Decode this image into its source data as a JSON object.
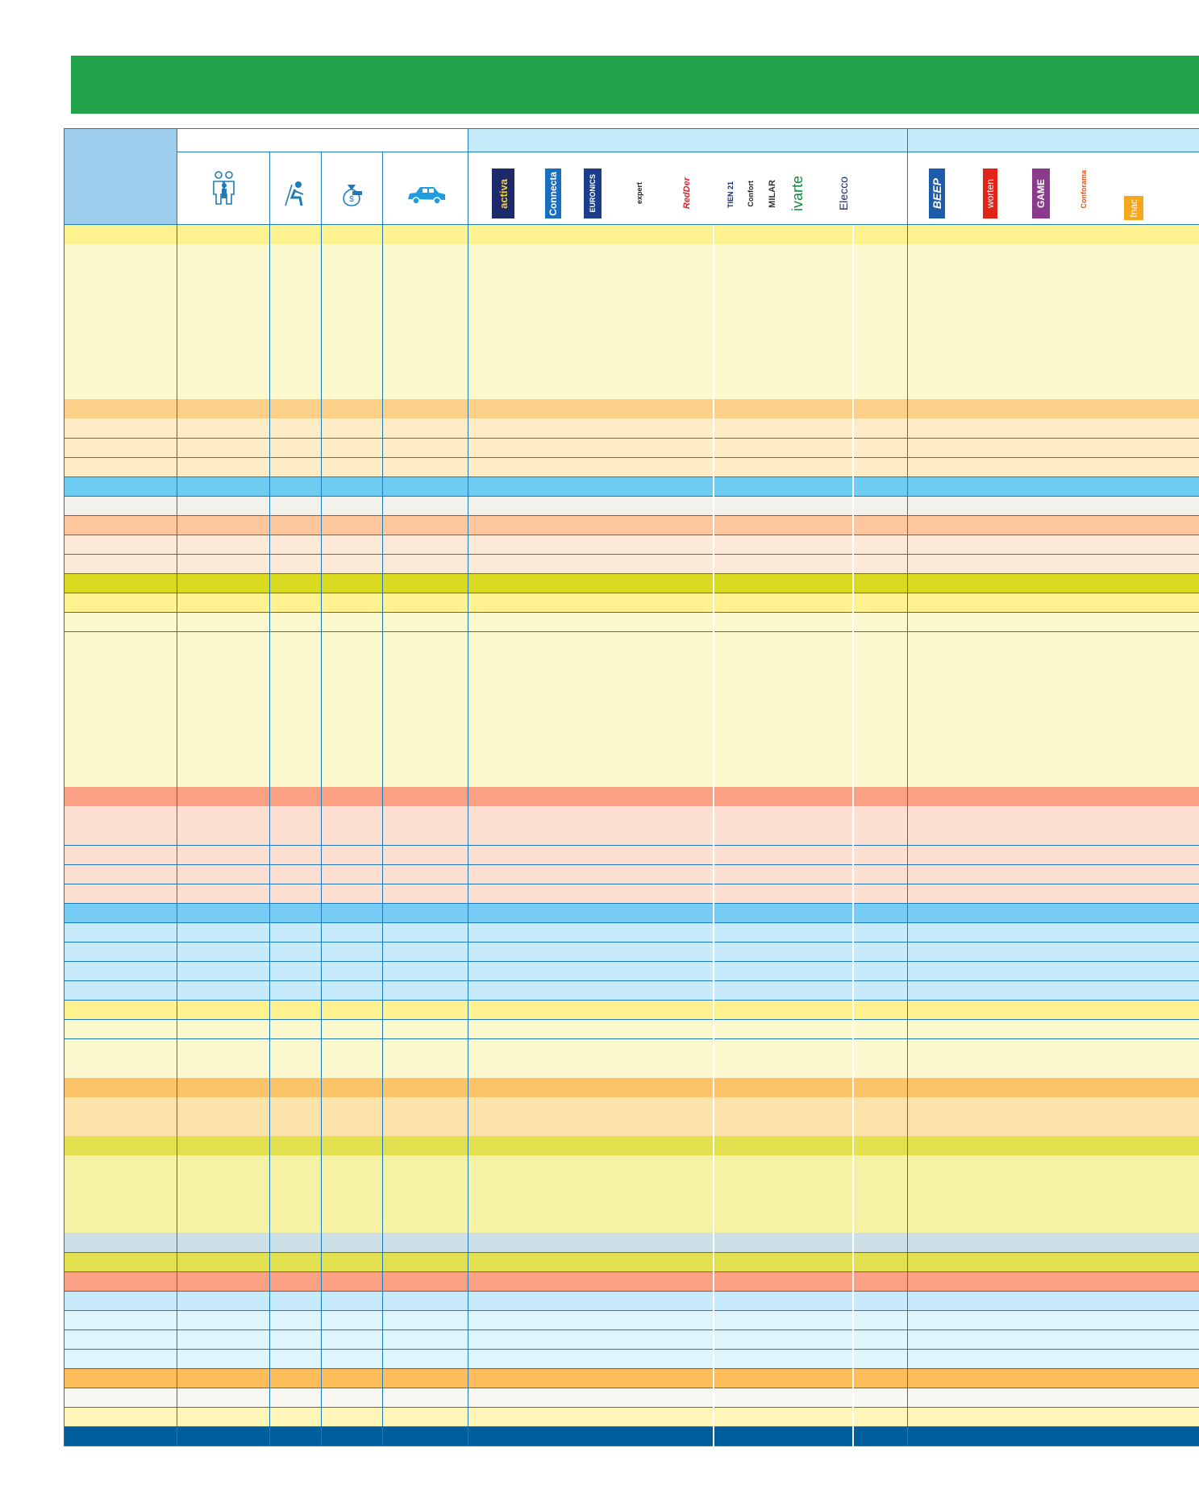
{
  "header": {
    "title": ""
  },
  "logos": {
    "activa": "activa",
    "connecta": "Connecta",
    "euronics": "EURONICS",
    "expert": "expert",
    "redder": "RedDer",
    "tien21": "TIEN 21",
    "confort": "Confort",
    "milar": "MILAR",
    "ivarte": "ivarte",
    "elecco": "Elecco",
    "beep": "BEEP",
    "worten": "worten",
    "game": "GAME",
    "conforama": "Conforama",
    "fnac": "fnac"
  },
  "icons": {
    "col1": "family-icon",
    "col2": "person-sitting-icon",
    "col3": "money-bag-icon",
    "col4": "car-icon"
  },
  "colors": {
    "green": "#22a34a",
    "border": "#1e7bb8",
    "header_left": "#9ccdec",
    "header_band": "#c6ebfa",
    "footer": "#005e9c"
  },
  "rows": [
    {
      "color": "#fdf28f"
    },
    {
      "color": "#fdf9cf"
    },
    {
      "color": "#fdf9cf"
    },
    {
      "color": "#fdf9cf"
    },
    {
      "color": "#fdf9cf"
    },
    {
      "color": "#fdf9cf"
    },
    {
      "color": "#fdf9cf"
    },
    {
      "color": "#fdf9cf"
    },
    {
      "color": "#fdf9cf"
    },
    {
      "color": "#fdd08a"
    },
    {
      "color": "#fdecc5"
    },
    {
      "color": "#fdecc5"
    },
    {
      "color": "#fdecc5"
    },
    {
      "color": "#6ecbf2"
    },
    {
      "color": "#f3f1ec"
    },
    {
      "color": "#fdc69d"
    },
    {
      "color": "#fde9d8"
    },
    {
      "color": "#fde9d8"
    },
    {
      "color": "#dada20"
    },
    {
      "color": "#fdf28f"
    },
    {
      "color": "#fdf9cf"
    },
    {
      "color": "#fdf9cf"
    },
    {
      "color": "#fdf9cf"
    },
    {
      "color": "#fdf9cf"
    },
    {
      "color": "#fdf9cf"
    },
    {
      "color": "#fdf9cf"
    },
    {
      "color": "#fdf9cf"
    },
    {
      "color": "#fdf9cf"
    },
    {
      "color": "#fdf9cf"
    },
    {
      "color": "#f9a085"
    },
    {
      "color": "#fde0d2"
    },
    {
      "color": "#fde0d2"
    },
    {
      "color": "#fde0d2"
    },
    {
      "color": "#fde0d2"
    },
    {
      "color": "#fde0d2"
    },
    {
      "color": "#76ccf2"
    },
    {
      "color": "#c7ebfa"
    },
    {
      "color": "#c7ebfa"
    },
    {
      "color": "#c7ebfa"
    },
    {
      "color": "#c7ebfa"
    },
    {
      "color": "#fdf28f"
    },
    {
      "color": "#fdf9cf"
    },
    {
      "color": "#fdf9cf"
    },
    {
      "color": "#fdf9cf"
    },
    {
      "color": "#fcc369"
    },
    {
      "color": "#fde3aa"
    },
    {
      "color": "#fde3aa"
    },
    {
      "color": "#e3e04f"
    },
    {
      "color": "#f5f2a5"
    },
    {
      "color": "#f5f2a5"
    },
    {
      "color": "#f5f2a5"
    },
    {
      "color": "#f5f2a5"
    },
    {
      "color": "#cde0e8"
    },
    {
      "color": "#e3e04f"
    },
    {
      "color": "#f9a085"
    },
    {
      "color": "#c7ebfa"
    },
    {
      "color": "#def5fc"
    },
    {
      "color": "#def5fc"
    },
    {
      "color": "#def5fc"
    },
    {
      "color": "#fdbd5a"
    },
    {
      "color": "#f8f7f1"
    },
    {
      "color": "#fdf6b8"
    },
    {
      "color": "#005e9c"
    }
  ]
}
